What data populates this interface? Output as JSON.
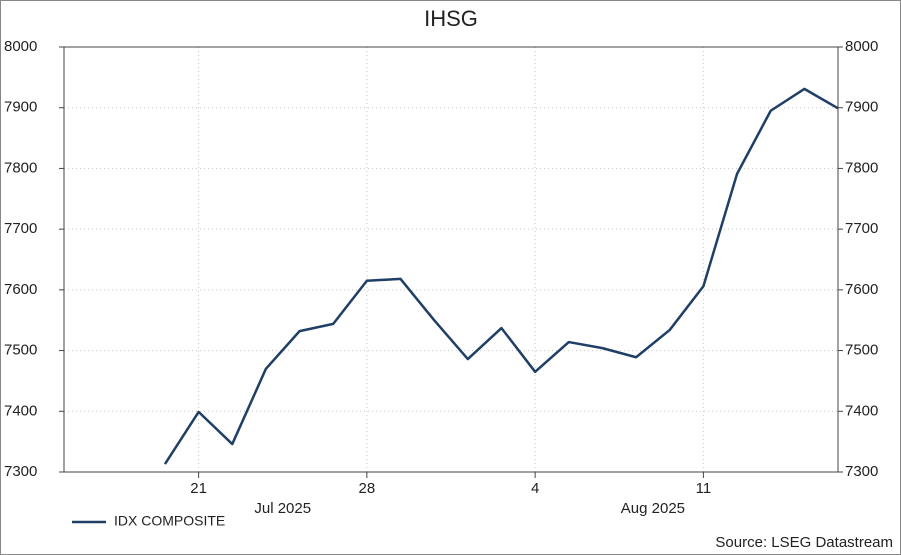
{
  "chart_data": {
    "type": "line",
    "title": "IHSG",
    "categories": [
      "2025-07-18",
      "2025-07-21",
      "2025-07-22",
      "2025-07-23",
      "2025-07-24",
      "2025-07-25",
      "2025-07-28",
      "2025-07-29",
      "2025-07-30",
      "2025-07-31",
      "2025-08-01",
      "2025-08-04",
      "2025-08-05",
      "2025-08-06",
      "2025-08-07",
      "2025-08-08",
      "2025-08-11",
      "2025-08-12",
      "2025-08-13",
      "2025-08-14",
      "2025-08-15"
    ],
    "series": [
      {
        "name": "IDX COMPOSITE",
        "color": "#1f3f66",
        "values": [
          7313,
          7399,
          7346,
          7470,
          7532,
          7544,
          7615,
          7618,
          7550,
          7486,
          7537,
          7465,
          7514,
          7504,
          7489,
          7534,
          7606,
          7791,
          7895,
          7931,
          7899
        ]
      }
    ],
    "xticks": [
      {
        "value": "2025-07-21",
        "label": "21"
      },
      {
        "value": "2025-07-28",
        "label": "28"
      },
      {
        "value": "2025-08-04",
        "label": "4"
      },
      {
        "value": "2025-08-11",
        "label": "11"
      }
    ],
    "month_labels": [
      {
        "value": "2025-07-24",
        "label": "Jul 2025"
      },
      {
        "value": "2025-08-08",
        "label": "Aug 2025"
      }
    ],
    "ylim": [
      7300,
      8000
    ],
    "yticks": [
      7300,
      7400,
      7500,
      7600,
      7700,
      7800,
      7900,
      8000
    ],
    "y2lim": [
      7300,
      8000
    ],
    "y2ticks": [
      7300,
      7400,
      7500,
      7600,
      7700,
      7800,
      7900,
      8000
    ],
    "grid": true,
    "legend": "bottom-left",
    "source": "Source: LSEG Datastream"
  }
}
